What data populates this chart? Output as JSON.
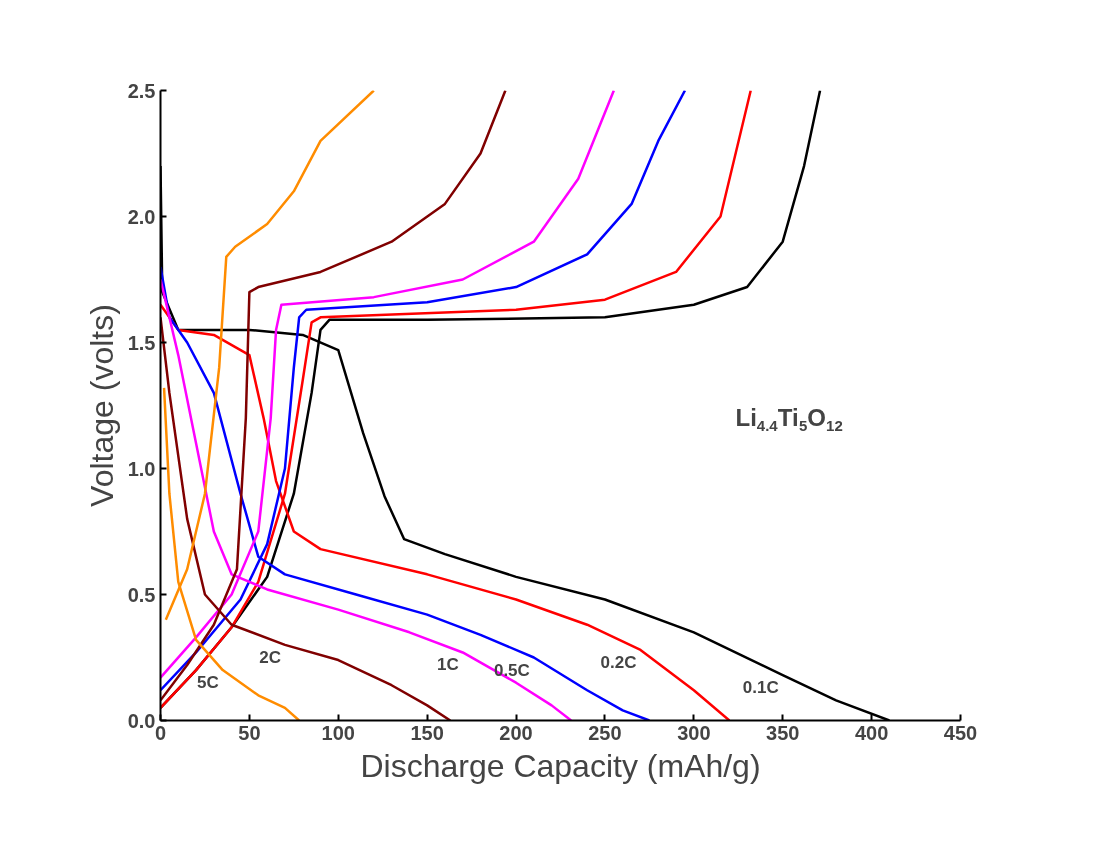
{
  "chart_data": {
    "type": "line",
    "xlabel": "Discharge Capacity (mAh/g)",
    "ylabel": "Voltage (volts)",
    "xlim": [
      0,
      450
    ],
    "ylim": [
      0,
      2.5
    ],
    "xticks": [
      0,
      50,
      100,
      150,
      200,
      250,
      300,
      350,
      400,
      450
    ],
    "yticks": [
      {
        "value": 0,
        "label": "0.0"
      },
      0.5,
      {
        "value": 1,
        "label": "1.0"
      },
      1.5,
      {
        "value": 2,
        "label": "2.0"
      },
      2.5
    ],
    "grid": false,
    "legend": false,
    "line_style": "solid",
    "marker": "none",
    "series": [
      {
        "name": "0.1C",
        "color": "#000000",
        "x": [
          0,
          1,
          10,
          50,
          80,
          100,
          114,
          126,
          137,
          160,
          200,
          250,
          300,
          350,
          380,
          410
        ],
        "values": [
          2.2,
          1.7,
          1.55,
          1.55,
          1.53,
          1.47,
          1.14,
          0.89,
          0.72,
          0.66,
          0.57,
          0.48,
          0.35,
          0.18,
          0.08,
          0
        ]
      },
      {
        "color": "#000000",
        "x": [
          0,
          20,
          40,
          60,
          75,
          85,
          90,
          95,
          150,
          250,
          300,
          330,
          350,
          362,
          371
        ],
        "values": [
          0.05,
          0.2,
          0.37,
          0.57,
          0.9,
          1.3,
          1.55,
          1.59,
          1.59,
          1.6,
          1.65,
          1.72,
          1.9,
          2.2,
          2.5
        ]
      },
      {
        "name": "0.2C",
        "color": "#ff0000",
        "x": [
          0,
          10,
          30,
          50,
          58,
          65,
          75,
          90,
          150,
          200,
          240,
          270,
          300,
          320
        ],
        "values": [
          1.65,
          1.55,
          1.53,
          1.45,
          1.2,
          0.95,
          0.75,
          0.68,
          0.58,
          0.48,
          0.38,
          0.28,
          0.12,
          0
        ]
      },
      {
        "color": "#ff0000",
        "x": [
          0,
          20,
          40,
          55,
          70,
          80,
          85,
          90,
          200,
          250,
          290,
          315,
          332
        ],
        "values": [
          0.05,
          0.2,
          0.37,
          0.55,
          0.9,
          1.35,
          1.58,
          1.6,
          1.63,
          1.67,
          1.78,
          2.0,
          2.5
        ]
      },
      {
        "name": "0.5C",
        "color": "#0000ff",
        "x": [
          0,
          5,
          15,
          30,
          45,
          55,
          70,
          110,
          150,
          180,
          210,
          240,
          260,
          275
        ],
        "values": [
          1.8,
          1.6,
          1.5,
          1.3,
          0.9,
          0.65,
          0.58,
          0.5,
          0.42,
          0.34,
          0.25,
          0.12,
          0.04,
          0
        ]
      },
      {
        "color": "#0000ff",
        "x": [
          0,
          20,
          45,
          60,
          70,
          75,
          78,
          82,
          150,
          200,
          240,
          265,
          280,
          295
        ],
        "values": [
          0.12,
          0.27,
          0.48,
          0.7,
          1.0,
          1.4,
          1.6,
          1.63,
          1.66,
          1.72,
          1.85,
          2.05,
          2.3,
          2.5
        ]
      },
      {
        "name": "1C",
        "color": "#ff00ff",
        "x": [
          0,
          10,
          20,
          30,
          40,
          60,
          100,
          140,
          170,
          200,
          220,
          231
        ],
        "values": [
          1.75,
          1.45,
          1.1,
          0.75,
          0.58,
          0.52,
          0.44,
          0.35,
          0.27,
          0.15,
          0.06,
          0
        ]
      },
      {
        "color": "#ff00ff",
        "x": [
          0,
          20,
          40,
          55,
          62,
          65,
          68,
          120,
          170,
          210,
          235,
          255
        ],
        "values": [
          0.17,
          0.33,
          0.5,
          0.75,
          1.2,
          1.55,
          1.65,
          1.68,
          1.75,
          1.9,
          2.15,
          2.5
        ]
      },
      {
        "name": "2C",
        "color": "#800000",
        "x": [
          0,
          5,
          15,
          25,
          40,
          70,
          100,
          130,
          150,
          163
        ],
        "values": [
          1.6,
          1.3,
          0.8,
          0.5,
          0.38,
          0.3,
          0.24,
          0.14,
          0.06,
          0
        ]
      },
      {
        "color": "#800000",
        "x": [
          0,
          15,
          30,
          43,
          48,
          50,
          55,
          90,
          130,
          160,
          180,
          194
        ],
        "values": [
          0.08,
          0.22,
          0.38,
          0.6,
          1.2,
          1.7,
          1.72,
          1.78,
          1.9,
          2.05,
          2.25,
          2.5
        ]
      },
      {
        "name": "5C",
        "color": "#ff8c00",
        "x": [
          2,
          5,
          10,
          20,
          35,
          55,
          70,
          78
        ],
        "values": [
          1.32,
          0.9,
          0.55,
          0.32,
          0.2,
          0.1,
          0.05,
          0
        ]
      },
      {
        "color": "#ff8c00",
        "x": [
          3,
          15,
          25,
          33,
          37,
          42,
          60,
          75,
          90,
          120
        ],
        "values": [
          0.4,
          0.6,
          0.9,
          1.4,
          1.84,
          1.88,
          1.97,
          2.1,
          2.3,
          2.5
        ]
      }
    ],
    "annotations": [
      "Li$_{4.4}$Ti$_{5}$O$_{12}$"
    ]
  }
}
